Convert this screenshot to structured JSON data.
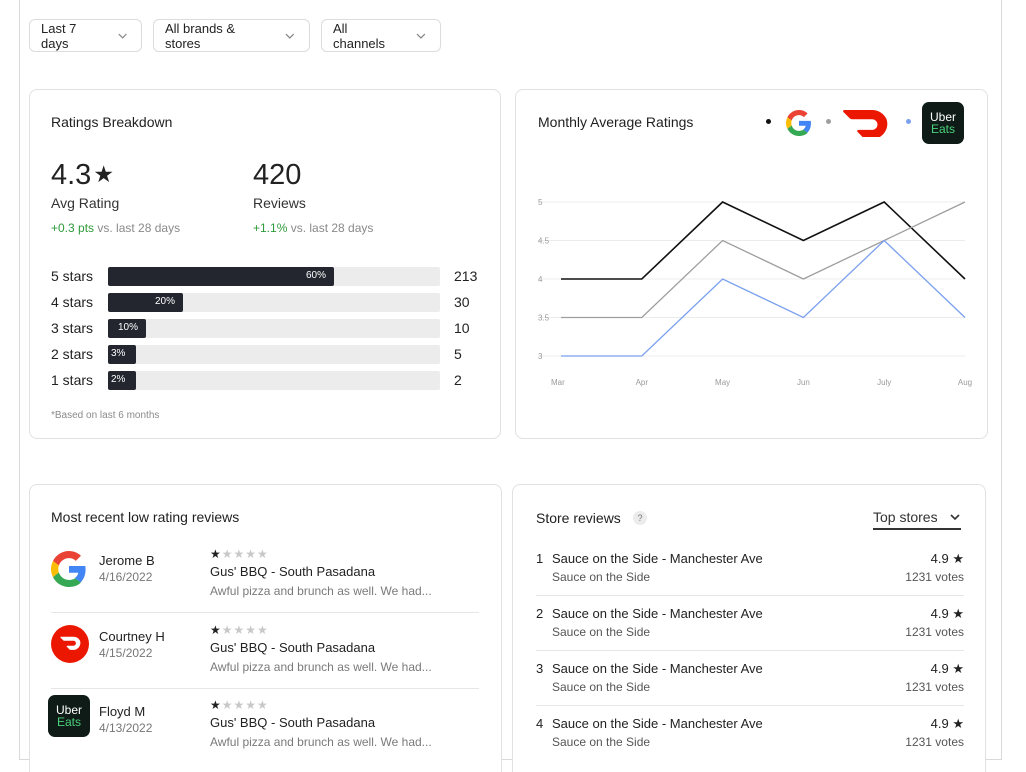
{
  "filters": [
    {
      "label": "Last 7 days"
    },
    {
      "label": "All brands & stores"
    },
    {
      "label": "All channels"
    }
  ],
  "ratings": {
    "title": "Ratings Breakdown",
    "avg_rating": "4.3",
    "star_glyph": "★",
    "avg_label": "Avg Rating",
    "avg_delta": "+0.3 pts",
    "avg_delta_suffix": "vs. last 28 days",
    "reviews_count": "420",
    "reviews_label": "Reviews",
    "reviews_delta": "+1.1%",
    "reviews_delta_suffix": "vs. last 28 days",
    "bars": [
      {
        "label": "5 stars",
        "pct_text": "60%",
        "pct": 60,
        "count": "213"
      },
      {
        "label": "4 stars",
        "pct_text": "20%",
        "pct": 20,
        "count": "30"
      },
      {
        "label": "3 stars",
        "pct_text": "10%",
        "pct": 10,
        "count": "10"
      },
      {
        "label": "2 stars",
        "pct_text": "3%",
        "pct": 3,
        "count": "5"
      },
      {
        "label": "1 stars",
        "pct_text": "2%",
        "pct": 2,
        "count": "2"
      }
    ],
    "footnote": "*Based on last  6 months"
  },
  "monthly": {
    "title": "Monthly Average Ratings",
    "legend": [
      {
        "name": "Google",
        "color": "#111111"
      },
      {
        "name": "DoorDash",
        "color": "#9e9e9e"
      },
      {
        "name": "Uber Eats",
        "color": "#7aa0ee"
      }
    ],
    "uber_top": "Uber",
    "uber_bottom": "Eats"
  },
  "chart_data": {
    "type": "line",
    "title": "Monthly Average Ratings",
    "categories": [
      "Mar",
      "Apr",
      "May",
      "Jun",
      "July",
      "Aug"
    ],
    "ylim": [
      3,
      5
    ],
    "yticks": [
      "3",
      "3.5",
      "4",
      "4.5",
      "5"
    ],
    "grid": true,
    "series": [
      {
        "name": "Google",
        "values": [
          4.0,
          4.0,
          5.0,
          4.5,
          5.0,
          4.0
        ]
      },
      {
        "name": "DoorDash",
        "values": [
          3.5,
          3.5,
          4.5,
          4.0,
          4.5,
          5.0
        ]
      },
      {
        "name": "Uber Eats",
        "values": [
          3.0,
          3.0,
          4.0,
          3.5,
          4.5,
          3.5
        ]
      }
    ]
  },
  "low_reviews": {
    "title": "Most recent low rating reviews",
    "items": [
      {
        "source": "google",
        "name": "Jerome B",
        "date": "4/16/2022",
        "stars_on": "★",
        "stars_off": "★★★★",
        "store": "Gus' BBQ - South Pasadana",
        "text": "Awful pizza and brunch as well. We had..."
      },
      {
        "source": "doordash",
        "name": "Courtney H",
        "date": "4/15/2022",
        "stars_on": "★",
        "stars_off": "★★★★",
        "store": "Gus' BBQ - South Pasadana",
        "text": "Awful pizza and brunch as well. We had..."
      },
      {
        "source": "ubereats",
        "name": "Floyd M",
        "date": "4/13/2022",
        "stars_on": "★",
        "stars_off": "★★★★",
        "store": "Gus' BBQ - South Pasadana",
        "text": "Awful pizza and brunch as well. We had..."
      }
    ]
  },
  "store_reviews": {
    "title": "Store reviews",
    "help": "?",
    "sort_label": "Top stores",
    "items": [
      {
        "index": "1",
        "name": "Sauce on the Side - Manchester Ave",
        "brand": "Sauce on the Side",
        "score": "4.9 ★",
        "votes": "1231 votes"
      },
      {
        "index": "2",
        "name": "Sauce on the Side - Manchester Ave",
        "brand": "Sauce on the Side",
        "score": "4.9 ★",
        "votes": "1231 votes"
      },
      {
        "index": "3",
        "name": "Sauce on the Side - Manchester Ave",
        "brand": "Sauce on the Side",
        "score": "4.9 ★",
        "votes": "1231 votes"
      },
      {
        "index": "4",
        "name": "Sauce on the Side - Manchester Ave",
        "brand": "Sauce on the Side",
        "score": "4.9 ★",
        "votes": "1231 votes"
      }
    ]
  }
}
